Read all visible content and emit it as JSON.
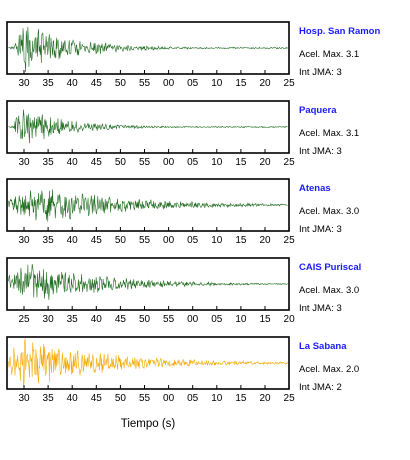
{
  "chart_data": {
    "type": "line",
    "xlabel": "Tiempo (s)",
    "panels": [
      {
        "station": "Hosp. San Ramon",
        "accel_label": "Acel. Max. 3.1",
        "jma_label": "Int JMA: 3",
        "color": "#1f6b1f",
        "tick_labels": [
          "30",
          "35",
          "40",
          "45",
          "50",
          "55",
          "00",
          "05",
          "10",
          "15",
          "20",
          "25"
        ],
        "amplitude": 1.0,
        "onset": 0.02,
        "decay": 0.18,
        "peak_pos": 0.06,
        "seed": 11
      },
      {
        "station": "Paquera",
        "accel_label": "Acel. Max. 3.1",
        "jma_label": "Int JMA: 3",
        "color": "#1f6b1f",
        "tick_labels": [
          "30",
          "35",
          "40",
          "45",
          "50",
          "55",
          "00",
          "05",
          "10",
          "15",
          "20",
          "25"
        ],
        "amplitude": 0.85,
        "onset": 0.02,
        "decay": 0.16,
        "peak_pos": 0.04,
        "seed": 23
      },
      {
        "station": "Atenas",
        "accel_label": "Acel. Max. 3.0",
        "jma_label": "Int JMA: 3",
        "color": "#1f6b1f",
        "tick_labels": [
          "30",
          "35",
          "40",
          "45",
          "50",
          "55",
          "00",
          "05",
          "10",
          "15",
          "20",
          "25"
        ],
        "amplitude": 0.75,
        "onset": 0.0,
        "decay": 0.3,
        "peak_pos": 0.14,
        "seed": 37
      },
      {
        "station": "CAIS Puriscal",
        "accel_label": "Acel. Max. 3.0",
        "jma_label": "Int JMA: 3",
        "color": "#1f6b1f",
        "tick_labels": [
          "25",
          "30",
          "35",
          "40",
          "45",
          "50",
          "55",
          "00",
          "05",
          "10",
          "15",
          "20"
        ],
        "amplitude": 0.9,
        "onset": 0.0,
        "decay": 0.25,
        "peak_pos": 0.08,
        "seed": 53
      },
      {
        "station": "La Sabana",
        "accel_label": "Acel. Max. 2.0",
        "jma_label": "Int JMA: 2",
        "color": "#f5a800",
        "tick_labels": [
          "30",
          "35",
          "40",
          "45",
          "50",
          "55",
          "00",
          "05",
          "10",
          "15",
          "20",
          "25"
        ],
        "amplitude": 1.0,
        "onset": 0.0,
        "decay": 0.3,
        "peak_pos": 0.06,
        "seed": 71
      }
    ]
  }
}
